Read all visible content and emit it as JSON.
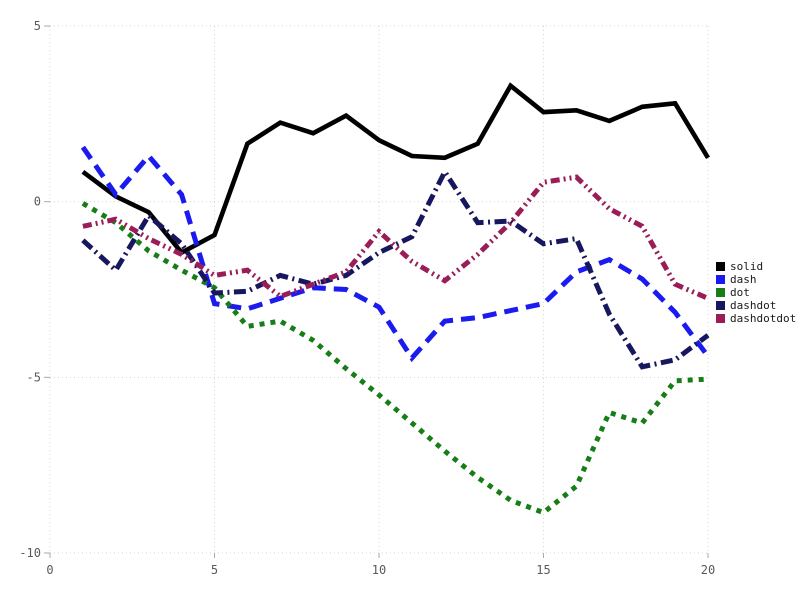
{
  "chart_data": {
    "type": "line",
    "title": "",
    "xlabel": "",
    "ylabel": "",
    "xlim": [
      0,
      20
    ],
    "ylim": [
      -10,
      5
    ],
    "xticks": [
      0,
      5,
      10,
      15,
      20
    ],
    "yticks": [
      -10,
      -5,
      0,
      5
    ],
    "grid": true,
    "legend_position": "right-outside",
    "x": [
      1,
      2,
      3,
      4,
      5,
      6,
      7,
      8,
      9,
      10,
      11,
      12,
      13,
      14,
      15,
      16,
      17,
      18,
      19,
      20
    ],
    "series": [
      {
        "name": "solid",
        "style": "solid",
        "color": "#000000",
        "values": [
          0.85,
          0.15,
          -0.3,
          -1.45,
          -0.95,
          1.65,
          2.25,
          1.95,
          2.45,
          1.75,
          1.3,
          1.25,
          1.65,
          3.3,
          2.55,
          2.6,
          2.3,
          2.7,
          2.8,
          1.25
        ]
      },
      {
        "name": "dash",
        "style": "dash",
        "color": "#1b1bef",
        "values": [
          1.55,
          0.2,
          1.3,
          0.2,
          -2.9,
          -3.05,
          -2.75,
          -2.45,
          -2.5,
          -3.0,
          -4.45,
          -3.4,
          -3.3,
          -3.1,
          -2.9,
          -2.0,
          -1.65,
          -2.2,
          -3.15,
          -4.4
        ]
      },
      {
        "name": "dot",
        "style": "dot",
        "color": "#177d17",
        "values": [
          -0.05,
          -0.6,
          -1.4,
          -1.95,
          -2.45,
          -3.55,
          -3.4,
          -3.95,
          -4.75,
          -5.5,
          -6.3,
          -7.1,
          -7.85,
          -8.5,
          -8.85,
          -8.1,
          -6.0,
          -6.3,
          -5.1,
          -5.05
        ]
      },
      {
        "name": "dashdot",
        "style": "dashdot",
        "color": "#171760",
        "values": [
          -1.1,
          -1.95,
          -0.4,
          -1.2,
          -2.6,
          -2.55,
          -2.1,
          -2.35,
          -2.1,
          -1.45,
          -1.0,
          0.85,
          -0.6,
          -0.55,
          -1.2,
          -1.05,
          -3.2,
          -4.7,
          -4.5,
          -3.8
        ]
      },
      {
        "name": "dashdotdot",
        "style": "dashdotdot",
        "color": "#9a1d57",
        "values": [
          -0.7,
          -0.5,
          -1.05,
          -1.5,
          -2.1,
          -1.95,
          -2.7,
          -2.35,
          -2.0,
          -0.85,
          -1.7,
          -2.25,
          -1.5,
          -0.6,
          0.55,
          0.7,
          -0.2,
          -0.7,
          -2.35,
          -2.75
        ]
      }
    ]
  },
  "axes": {
    "x_tick_labels": [
      "0",
      "5",
      "10",
      "15",
      "20"
    ],
    "y_tick_labels": [
      "-10",
      "-5",
      "0",
      "5"
    ]
  },
  "legend": {
    "items": [
      "solid",
      "dash",
      "dot",
      "dashdot",
      "dashdotdot"
    ]
  },
  "colors": {
    "background": "#ffffff",
    "grid": "#d4d4d4",
    "tick": "#aaaaaa",
    "tick_label": "#5a5a5a",
    "legend_text": "#1a1a1a"
  }
}
